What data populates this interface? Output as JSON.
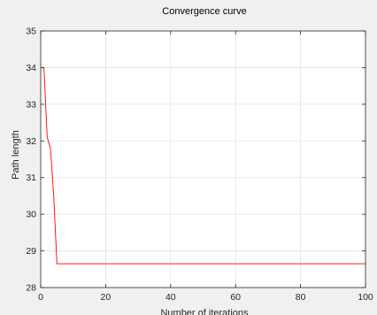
{
  "chart_data": {
    "type": "line",
    "title": "Convergence curve",
    "xlabel": "Number of iterations",
    "ylabel": "Path length",
    "xlim": [
      0,
      100
    ],
    "ylim": [
      28,
      35
    ],
    "xticks": [
      0,
      20,
      40,
      60,
      80,
      100
    ],
    "yticks": [
      28,
      29,
      30,
      31,
      32,
      33,
      34,
      35
    ],
    "grid": true,
    "legend": "none",
    "series": [
      {
        "color": "#ff0000",
        "x": [
          0,
          1,
          2,
          3,
          4,
          5,
          100
        ],
        "y": [
          34.0,
          34.0,
          32.1,
          31.8,
          30.5,
          28.65,
          28.65
        ]
      }
    ]
  },
  "colors": {
    "background": "#f0f0f0",
    "plot_area": "#ffffff",
    "axis": "#262626",
    "grid": "#e3e3e3"
  }
}
